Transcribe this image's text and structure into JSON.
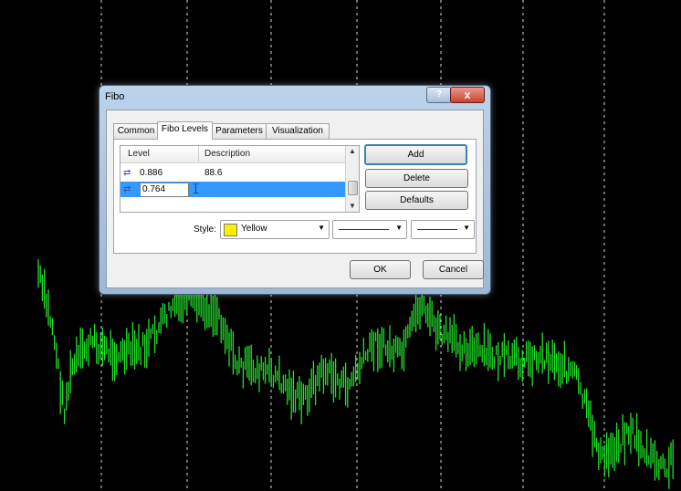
{
  "dialog": {
    "title": "Fibo",
    "help_label": "?",
    "close_label": "x",
    "tabs": [
      "Common",
      "Fibo Levels",
      "Parameters",
      "Visualization"
    ],
    "active_tab": "Fibo Levels",
    "levels_table": {
      "columns": [
        "Level",
        "Description"
      ],
      "rows": [
        {
          "level": "0.886",
          "description": "88.6"
        },
        {
          "level": "0.764",
          "description": ""
        }
      ],
      "editing_value": "0.764"
    },
    "buttons": {
      "add": "Add",
      "delete": "Delete",
      "defaults": "Defaults",
      "ok": "OK",
      "cancel": "Cancel"
    },
    "style": {
      "label": "Style:",
      "color_name": "Yellow",
      "color_hex": "#ffee00"
    }
  },
  "colors": {
    "background": "#000000",
    "candles": "#22e12a",
    "grid": "#d8d8d8"
  }
}
